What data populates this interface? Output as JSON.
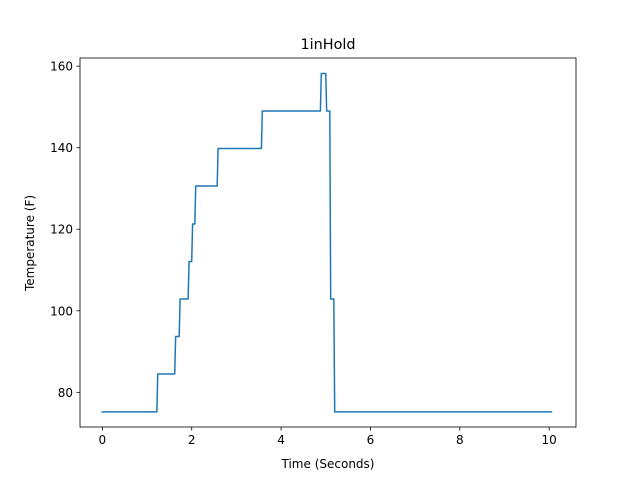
{
  "chart_data": {
    "type": "line",
    "title": "1inHold",
    "xlabel": "Time (Seconds)",
    "ylabel": "Temperature (F)",
    "xlim": [
      -0.5,
      10.6
    ],
    "ylim": [
      71.5,
      162.0
    ],
    "xticks": [
      0,
      2,
      4,
      6,
      8,
      10
    ],
    "yticks": [
      80,
      100,
      120,
      140,
      160
    ],
    "grid": false,
    "series": [
      {
        "color": "#1f77b4",
        "x": [
          0,
          1.22,
          1.24,
          1.62,
          1.64,
          1.72,
          1.74,
          1.92,
          1.94,
          2.0,
          2.02,
          2.07,
          2.09,
          2.57,
          2.59,
          3.56,
          3.58,
          4.88,
          4.9,
          5.0,
          5.02,
          5.09,
          5.11,
          5.18,
          5.2,
          10.05
        ],
        "y": [
          75.2,
          75.2,
          84.5,
          84.5,
          93.7,
          93.7,
          102.9,
          102.9,
          112.1,
          112.1,
          121.3,
          121.3,
          130.6,
          130.6,
          139.8,
          139.8,
          149.0,
          149.0,
          158.2,
          158.2,
          149.0,
          149.0,
          102.9,
          102.9,
          75.2,
          75.2
        ]
      }
    ]
  }
}
